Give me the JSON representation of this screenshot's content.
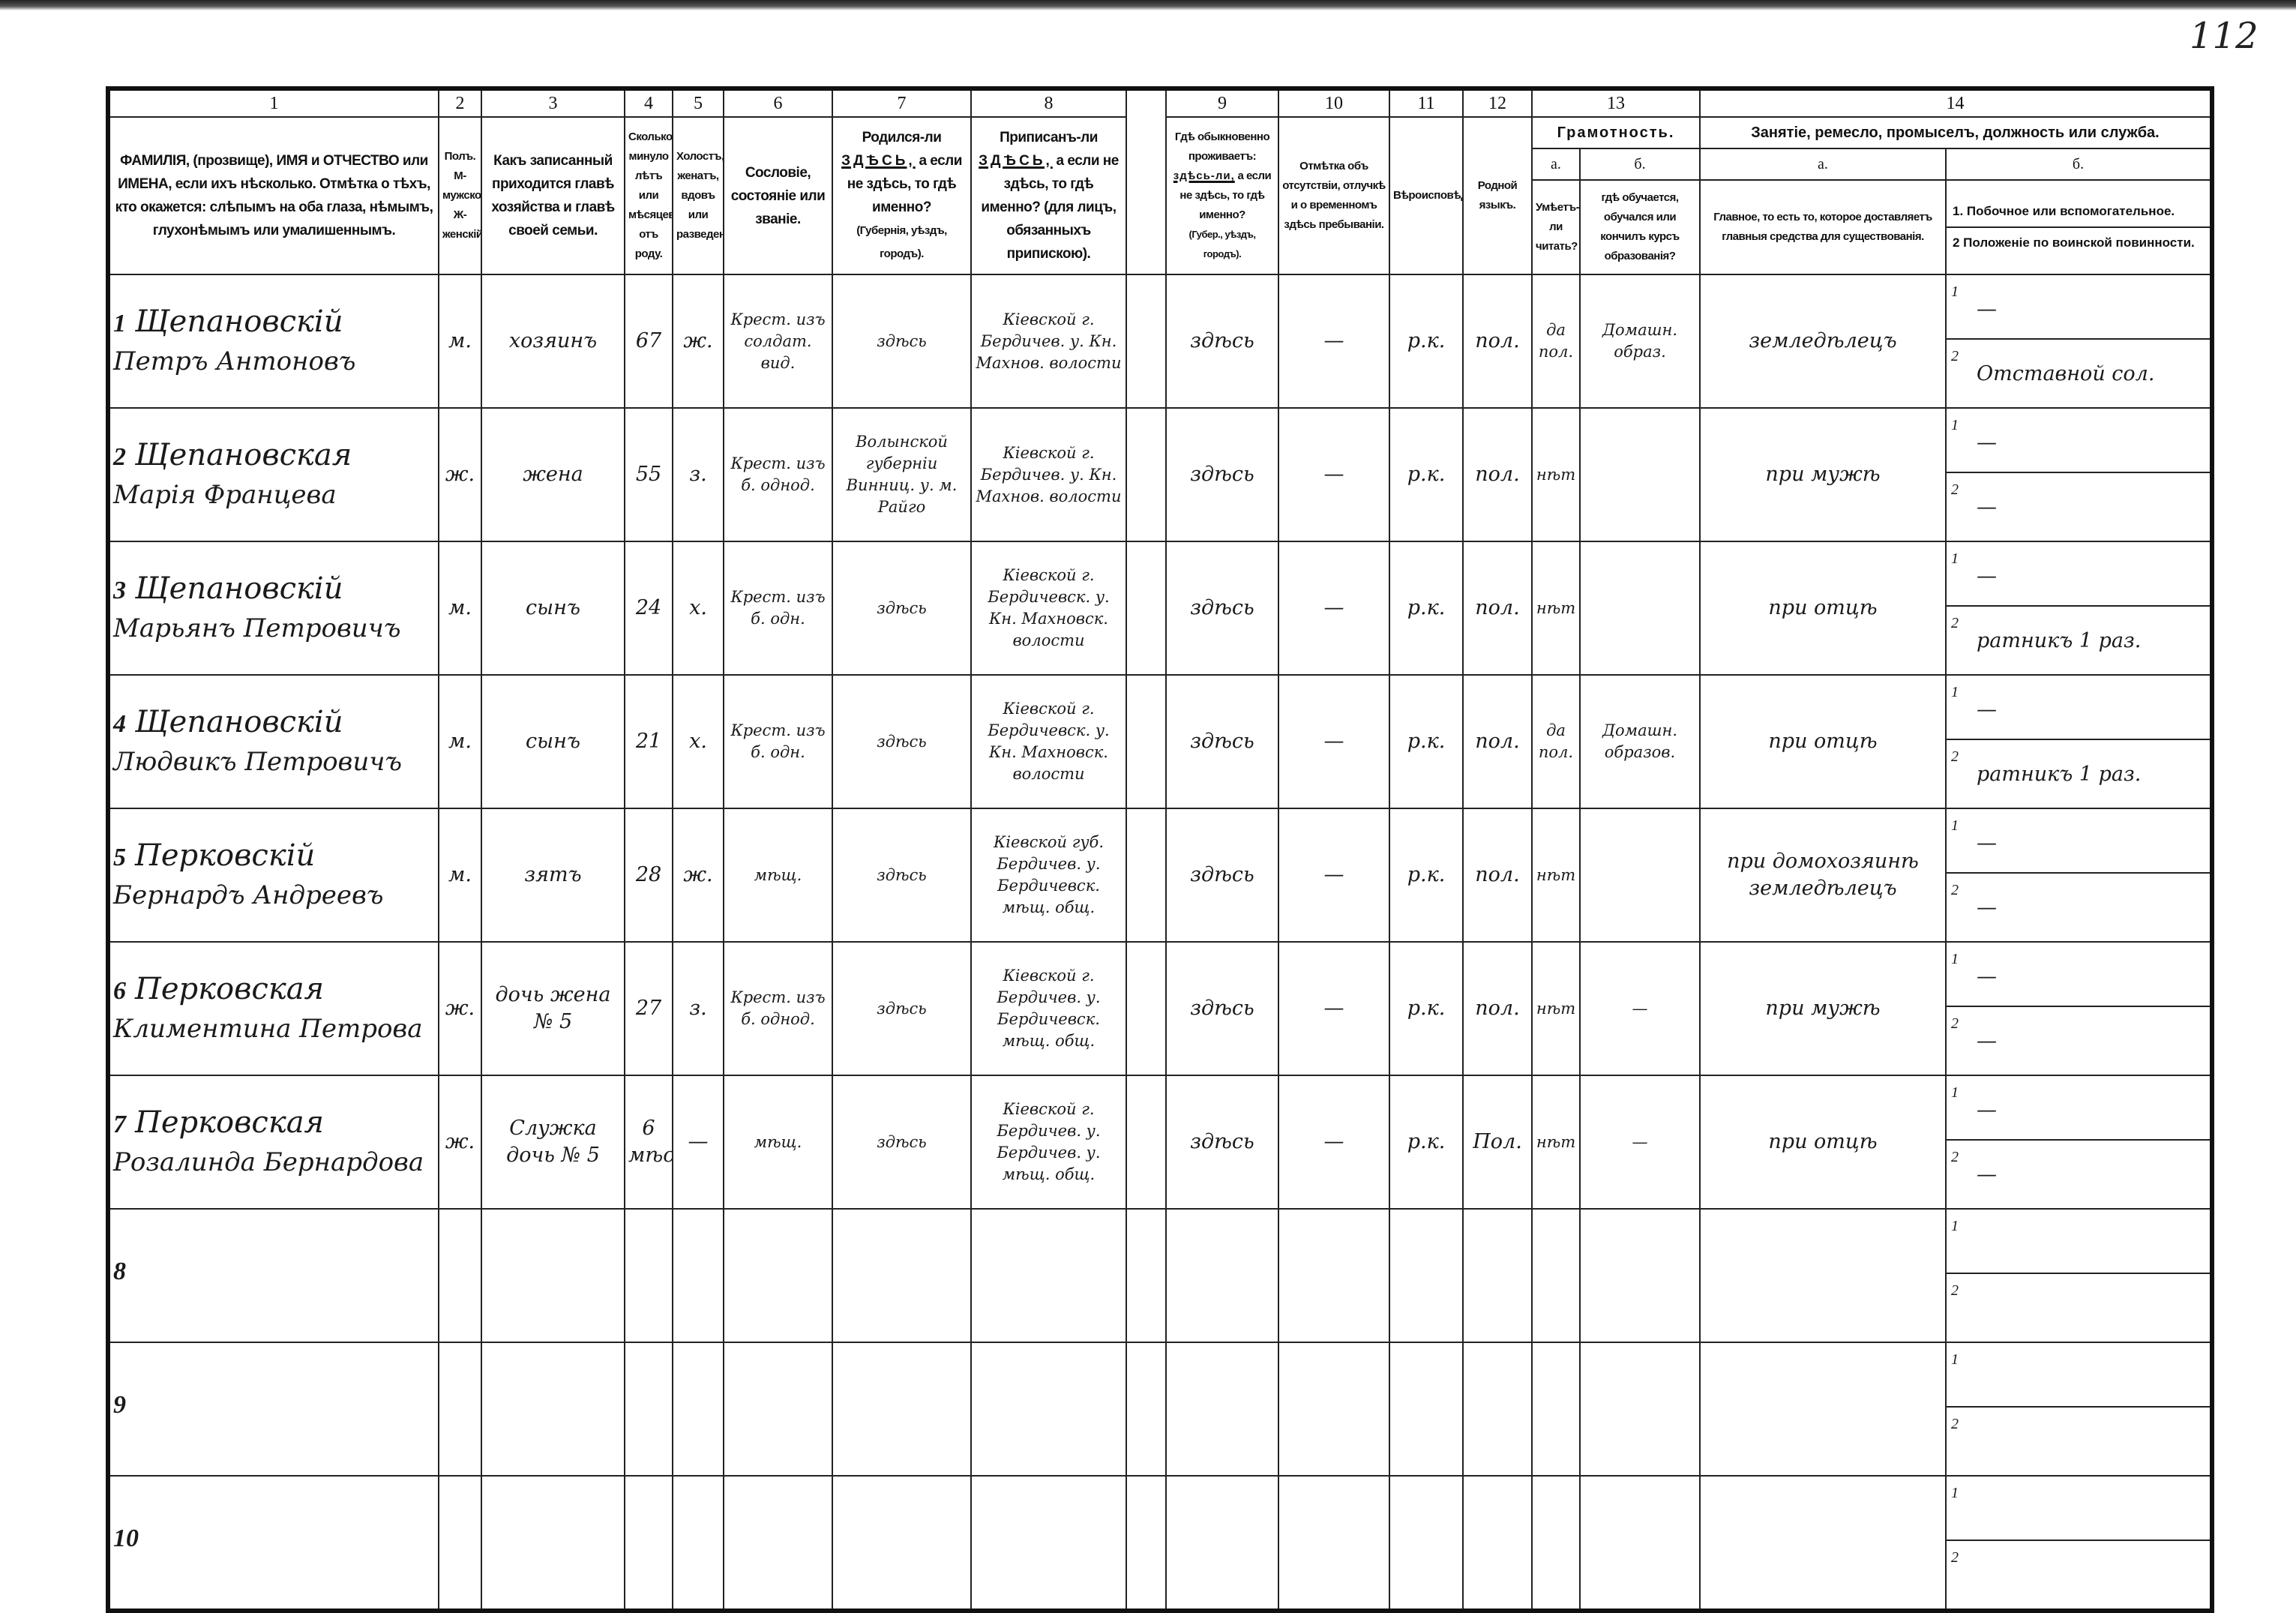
{
  "page_number": "112",
  "header": {
    "numbers": [
      "1",
      "2",
      "3",
      "4",
      "5",
      "6",
      "7",
      "8",
      "9",
      "10",
      "11",
      "12",
      "13",
      "14"
    ],
    "col1": "ФАМИЛІЯ, (прозвище), ИМЯ и ОТЧЕСТВО или ИМЕНА, если ихъ нѣсколько. Отмѣтка о тѣхъ, кто окажется: слѣпымъ на оба глаза, нѣмымъ, глухонѣмымъ или умалишеннымъ.",
    "col2": "Полъ. М-мужской. Ж-женскій.",
    "col3": "Какъ записанный приходится главѣ хозяйства и главѣ своей семьи.",
    "col4": "Сколько минуло лѣтъ или мѣсяцевъ отъ роду.",
    "col5": "Холостъ, женатъ, вдовъ или разведенъ.",
    "col6": "Сословіе, состояніе или званіе.",
    "col7_a": "Родился-ли",
    "col7_u": "ЗДѢСЬ,",
    "col7_b": "а если не здѣсь, то гдѣ именно?",
    "col7_c": "(Губернія, уѣздъ, городъ).",
    "col8_a": "Приписанъ-ли",
    "col8_u": "ЗДѢСЬ,",
    "col8_b": "а если не здѣсь, то гдѣ именно? (для лицъ, обязанныхъ припискою).",
    "col9_a": "Гдѣ обыкновенно проживаетъ:",
    "col9_u": "здѣсь-ли,",
    "col9_b": "а если не здѣсь, то гдѣ именно?",
    "col9_c": "(Губер., уѣздъ, городъ).",
    "col10": "Отмѣтка объ отсутствіи, отлучкѣ и о временномъ здѣсь пребываніи.",
    "col11": "Вѣроисповѣданіе.",
    "col12": "Родной языкъ.",
    "col13_group": "Грамотность.",
    "col13a_label": "а.",
    "col13b_label": "б.",
    "col13a": "Умѣетъ-ли читать?",
    "col13b": "гдѣ обучается, обучался или кончилъ курсъ образованія?",
    "col14_group": "Занятіе, ремесло, промыселъ, должность или служба.",
    "col14a_label": "а.",
    "col14b_label": "б.",
    "col14a": "Главное, то есть то, которое доставляетъ главныя средства для существованія.",
    "col14b_1": "1. Побочное или вспомогательное.",
    "col14b_2": "2 Положеніе по воинской повинности."
  },
  "row_sublabels": {
    "one": "1",
    "two": "2"
  },
  "rows": [
    {
      "n": "1",
      "surname": "Щепановскій",
      "given": "Петръ Антоновъ",
      "sex": "м.",
      "relation": "хозяинъ",
      "age": "67",
      "marital": "ж.",
      "estate": "Крест. изъ солдат. вид.",
      "born": "здѣсь",
      "registered": "Кіевской г. Бердичев. у. Кн. Махнов. волости",
      "residence": "здѣсь",
      "absence": "—",
      "religion": "р.к.",
      "language": "пол.",
      "can_read": "да пол.",
      "education": "Домашн. образ.",
      "occupation": "земледѣлецъ",
      "secondary": "—",
      "military": "Отставной сол."
    },
    {
      "n": "2",
      "surname": "Щепановская",
      "given": "Марія Францева",
      "sex": "ж.",
      "relation": "жена",
      "age": "55",
      "marital": "з.",
      "estate": "Крест. изъ б. однод.",
      "born": "Волынской губерніи Винниц. у. м. Райго",
      "registered": "Кіевской г. Бердичев. у. Кн. Махнов. волости",
      "residence": "здѣсь",
      "absence": "—",
      "religion": "р.к.",
      "language": "пол.",
      "can_read": "нѣт",
      "education": "",
      "occupation": "при мужѣ",
      "secondary": "—",
      "military": "—"
    },
    {
      "n": "3",
      "surname": "Щепановскій",
      "given": "Марьянъ Петровичъ",
      "sex": "м.",
      "relation": "сынъ",
      "age": "24",
      "marital": "х.",
      "estate": "Крест. изъ б. одн.",
      "born": "здѣсь",
      "registered": "Кіевской г. Бердичевск. у. Кн. Махновск. волости",
      "residence": "здѣсь",
      "absence": "—",
      "religion": "р.к.",
      "language": "пол.",
      "can_read": "нѣт",
      "education": "",
      "occupation": "при отцѣ",
      "secondary": "—",
      "military": "ратникъ 1 раз."
    },
    {
      "n": "4",
      "surname": "Щепановскій",
      "given": "Людвикъ Петровичъ",
      "sex": "м.",
      "relation": "сынъ",
      "age": "21",
      "marital": "х.",
      "estate": "Крест. изъ б. одн.",
      "born": "здѣсь",
      "registered": "Кіевской г. Бердичевск. у. Кн. Махновск. волости",
      "residence": "здѣсь",
      "absence": "—",
      "religion": "р.к.",
      "language": "пол.",
      "can_read": "да пол.",
      "education": "Домашн. образов.",
      "occupation": "при отцѣ",
      "secondary": "—",
      "military": "ратникъ 1 раз."
    },
    {
      "n": "5",
      "surname": "Перковскій",
      "given": "Бернардъ Андреевъ",
      "sex": "м.",
      "relation": "зятъ",
      "age": "28",
      "marital": "ж.",
      "estate": "мѣщ.",
      "born": "здѣсь",
      "registered": "Кіевской губ. Бердичев. у. Бердичевск. мѣщ. общ.",
      "residence": "здѣсь",
      "absence": "—",
      "religion": "р.к.",
      "language": "пол.",
      "can_read": "нѣт",
      "education": "",
      "occupation": "при домохозяинѣ земледѣлецъ",
      "secondary": "—",
      "military": "—"
    },
    {
      "n": "6",
      "surname": "Перковская",
      "given": "Климентина Петрова",
      "sex": "ж.",
      "relation": "дочь жена № 5",
      "age": "27",
      "marital": "з.",
      "estate": "Крест. изъ б. однод.",
      "born": "здѣсь",
      "registered": "Кіевской г. Бердичев. у. Бердичевск. мѣщ. общ.",
      "residence": "здѣсь",
      "absence": "—",
      "religion": "р.к.",
      "language": "пол.",
      "can_read": "нѣт",
      "education": "—",
      "occupation": "при мужѣ",
      "secondary": "—",
      "military": "—"
    },
    {
      "n": "7",
      "surname": "Перковская",
      "given": "Розалинда Бернардова",
      "sex": "ж.",
      "relation": "Служка дочь № 5",
      "age": "6 мѣс.",
      "marital": "—",
      "estate": "мѣщ.",
      "born": "здѣсь",
      "registered": "Кіевской г. Бердичев. у. Бердичев. у. мѣщ. общ.",
      "residence": "здѣсь",
      "absence": "—",
      "religion": "р.к.",
      "language": "Пол.",
      "can_read": "нѣт",
      "education": "—",
      "occupation": "при отцѣ",
      "secondary": "—",
      "military": "—"
    },
    {
      "n": "8"
    },
    {
      "n": "9"
    },
    {
      "n": "10"
    }
  ]
}
